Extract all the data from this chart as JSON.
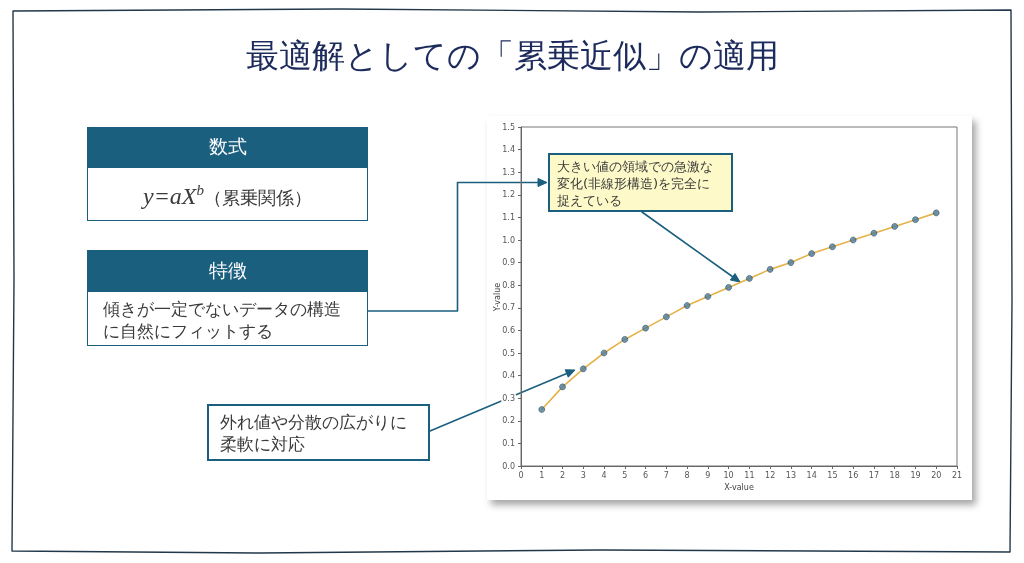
{
  "chart_data": {
    "type": "scatter",
    "title": "最適解としての「累乗近似」の適用",
    "xlabel": "X-value",
    "ylabel": "Y-value",
    "x": [
      1,
      2,
      3,
      4,
      5,
      6,
      7,
      8,
      9,
      10,
      11,
      12,
      13,
      14,
      15,
      16,
      17,
      18,
      19,
      20
    ],
    "series": [
      {
        "type": "scatter",
        "color": "#4a7c9b",
        "values": [
          0.25,
          0.35,
          0.43,
          0.5,
          0.56,
          0.61,
          0.66,
          0.71,
          0.75,
          0.79,
          0.83,
          0.87,
          0.9,
          0.94,
          0.97,
          1.0,
          1.03,
          1.06,
          1.09,
          1.12
        ]
      },
      {
        "type": "line",
        "color": "#e5b24a",
        "marker": "none",
        "x": [
          1,
          2,
          3,
          4,
          5,
          6,
          7,
          8,
          9,
          10,
          11,
          12,
          13,
          14,
          15,
          16,
          17,
          18,
          19,
          20
        ],
        "values": [
          0.25,
          0.35,
          0.43,
          0.5,
          0.56,
          0.61,
          0.66,
          0.71,
          0.75,
          0.79,
          0.83,
          0.87,
          0.9,
          0.94,
          0.97,
          1.0,
          1.03,
          1.06,
          1.09,
          1.12
        ]
      }
    ],
    "marker": "circle",
    "xlim": [
      0,
      21
    ],
    "xticks": [
      0,
      1,
      2,
      3,
      4,
      5,
      6,
      7,
      8,
      9,
      10,
      11,
      12,
      13,
      14,
      15,
      16,
      17,
      18,
      19,
      20,
      21
    ],
    "ylim": [
      0,
      1.5
    ],
    "yticks": [
      {
        "value": 0,
        "label": "0.0"
      },
      0.1,
      0.2,
      0.3,
      0.4,
      0.5,
      0.6,
      0.7,
      0.8,
      0.9,
      {
        "value": 1,
        "label": "1.0"
      },
      1.1,
      1.2,
      1.3,
      1.4,
      1.5
    ],
    "annotations": [
      "数式",
      "y=aX$^{b}$（累乗関係）",
      "特徴",
      "傾きが一定でないデータの構造に自然にフィットする",
      "大きい値の領域での急激な変化(非線形構造)を完全に捉えている",
      "外れ値や分散の広がりに柔軟に対応"
    ]
  }
}
